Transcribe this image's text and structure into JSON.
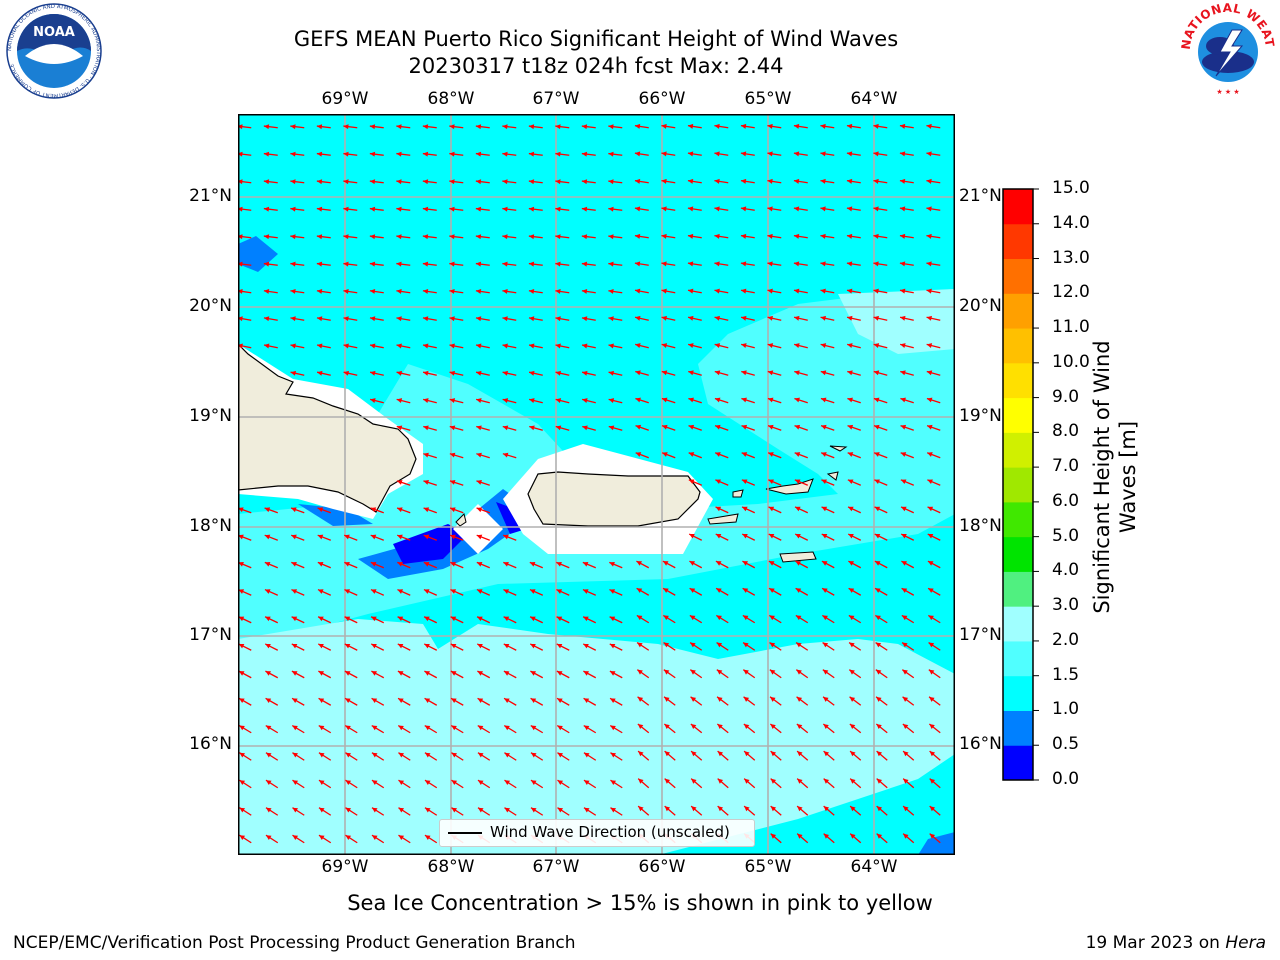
{
  "header": {
    "title_line1": "GEFS MEAN Puerto Rico Significant Height of Wind Waves",
    "title_line2": "20230317 t18z 024h fcst   Max: 2.44"
  },
  "logos": {
    "noaa": {
      "text": "NOAA",
      "ring_text": "NATIONAL OCEANIC AND ATMOSPHERIC ADMINISTRATION · U.S. DEPARTMENT OF COMMERCE"
    },
    "nws": {
      "ring_text": "NATIONAL WEATHER SERVICE"
    }
  },
  "map": {
    "lon_labels": [
      "69°W",
      "68°W",
      "67°W",
      "66°W",
      "65°W",
      "64°W"
    ],
    "lat_labels": [
      "21°N",
      "20°N",
      "19°N",
      "18°N",
      "17°N",
      "16°N"
    ],
    "legend_label": "Wind Wave Direction (unscaled)",
    "arrow_color": "#ff0000",
    "land_color": "#f0eddc"
  },
  "colorbar": {
    "title": "Significant Height of Wind Waves [m]",
    "tick_labels": [
      "0.0",
      "0.5",
      "1.0",
      "1.5",
      "2.0",
      "3.0",
      "4.0",
      "5.0",
      "6.0",
      "7.0",
      "8.0",
      "9.0",
      "10.0",
      "11.0",
      "12.0",
      "13.0",
      "14.0",
      "15.0"
    ],
    "colors": [
      "#0000ff",
      "#0080ff",
      "#00ffff",
      "#50ffff",
      "#a0ffff",
      "#50f080",
      "#00e400",
      "#40e800",
      "#a0e800",
      "#d0f000",
      "#ffff00",
      "#ffe000",
      "#ffc000",
      "#ffa000",
      "#ff7000",
      "#ff3800",
      "#ff0000"
    ]
  },
  "footer": {
    "note": "Sea Ice Concentration > 15% is shown in pink to yellow",
    "left": "NCEP/EMC/Verification Post Processing Product Generation Branch",
    "right_date": "19 Mar 2023 on",
    "right_host": "Hera"
  }
}
